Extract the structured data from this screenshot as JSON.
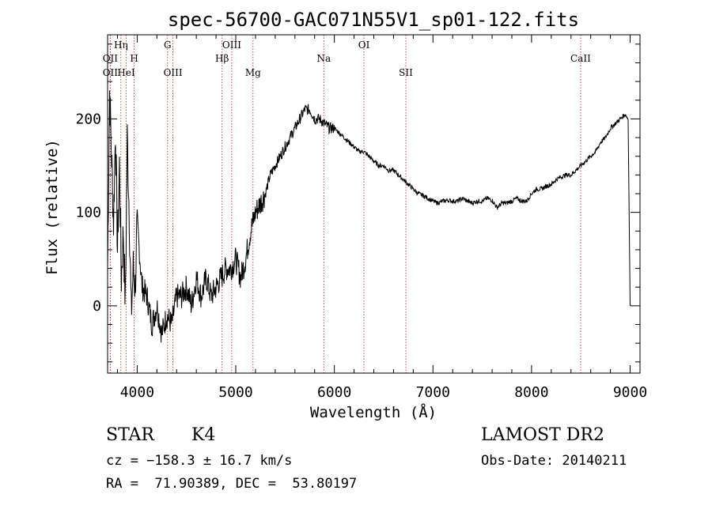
{
  "chart_data": {
    "type": "line",
    "title": "spec-56700-GAC071N55V1_sp01-122.fits",
    "xlabel": "Wavelength (Å)",
    "ylabel": "Flux (relative)",
    "xlim": [
      3700,
      9100
    ],
    "ylim": [
      -72,
      290
    ],
    "xticks": [
      4000,
      5000,
      6000,
      7000,
      8000,
      9000
    ],
    "yticks": [
      0,
      100,
      200
    ],
    "xtick_labels": [
      "4000",
      "5000",
      "6000",
      "7000",
      "8000",
      "9000"
    ],
    "ytick_labels": [
      "0",
      "100",
      "200"
    ],
    "grid": false,
    "line_color": "#000000",
    "line_marker_color": "#b22222",
    "series": [
      {
        "x": [
          3700,
          3720,
          3740,
          3760,
          3780,
          3800,
          3820,
          3840,
          3860,
          3880,
          3900,
          3920,
          3940,
          3960,
          3980,
          4000,
          4050,
          4100,
          4150,
          4200,
          4250,
          4300,
          4350,
          4400,
          4450,
          4500,
          4550,
          4600,
          4650,
          4700,
          4750,
          4800,
          4850,
          4900,
          4950,
          5000,
          5050,
          5100,
          5150,
          5200,
          5250,
          5300,
          5350,
          5400,
          5450,
          5500,
          5550,
          5600,
          5650,
          5700,
          5750,
          5800,
          5850,
          5900,
          5950,
          6000,
          6050,
          6100,
          6150,
          6200,
          6250,
          6300,
          6350,
          6400,
          6450,
          6500,
          6550,
          6600,
          6650,
          6700,
          6750,
          6800,
          6850,
          6900,
          6950,
          7000,
          7050,
          7100,
          7150,
          7200,
          7250,
          7300,
          7350,
          7400,
          7450,
          7500,
          7550,
          7600,
          7650,
          7700,
          7750,
          7800,
          7850,
          7900,
          7950,
          8000,
          8050,
          8100,
          8150,
          8200,
          8250,
          8300,
          8350,
          8400,
          8450,
          8500,
          8550,
          8600,
          8650,
          8700,
          8750,
          8800,
          8850,
          8900,
          8950,
          8980,
          9000
        ],
        "y": [
          40,
          230,
          160,
          90,
          190,
          60,
          150,
          30,
          80,
          0,
          180,
          100,
          -10,
          40,
          20,
          90,
          20,
          10,
          -20,
          0,
          -30,
          -10,
          -20,
          10,
          10,
          20,
          0,
          30,
          10,
          30,
          10,
          20,
          30,
          40,
          40,
          50,
          30,
          50,
          80,
          100,
          110,
          120,
          140,
          150,
          160,
          170,
          180,
          190,
          200,
          210,
          210,
          200,
          200,
          195,
          190,
          190,
          185,
          180,
          175,
          170,
          165,
          165,
          160,
          155,
          150,
          150,
          145,
          145,
          140,
          135,
          130,
          125,
          120,
          118,
          115,
          112,
          110,
          112,
          113,
          112,
          112,
          115,
          112,
          110,
          112,
          112,
          115,
          113,
          105,
          110,
          110,
          112,
          115,
          112,
          112,
          120,
          125,
          125,
          128,
          130,
          135,
          138,
          140,
          140,
          145,
          150,
          155,
          160,
          165,
          175,
          180,
          190,
          195,
          200,
          205,
          200,
          0
        ]
      }
    ],
    "line_markers": [
      {
        "label": "OII",
        "x": 3727,
        "row": 2
      },
      {
        "label": "OII",
        "x": 3727,
        "row": 4
      },
      {
        "label": "Hη",
        "x": 3835,
        "row": 1
      },
      {
        "label": "HeI",
        "x": 3889,
        "row": 4
      },
      {
        "label": "H",
        "x": 3970,
        "row": 2
      },
      {
        "label": "G",
        "x": 4308,
        "row": 1
      },
      {
        "label": "OIII",
        "x": 4363,
        "row": 4
      },
      {
        "label": "Hβ",
        "x": 4861,
        "row": 2
      },
      {
        "label": "OIII",
        "x": 4959,
        "row": 1
      },
      {
        "label": "Mg",
        "x": 5175,
        "row": 4
      },
      {
        "label": "Na",
        "x": 5893,
        "row": 2
      },
      {
        "label": "OI",
        "x": 6300,
        "row": 1
      },
      {
        "label": "SII",
        "x": 6725,
        "row": 4
      },
      {
        "label": "CaII",
        "x": 8498,
        "row": 2
      }
    ]
  },
  "info": {
    "object_class": "STAR",
    "subclass": "K4",
    "survey": "LAMOST DR2",
    "cz": "cz = −158.3 ± 16.7 km/s",
    "obs_date": "Obs-Date: 20140211",
    "radec": "RA =  71.90389, DEC =  53.80197"
  }
}
